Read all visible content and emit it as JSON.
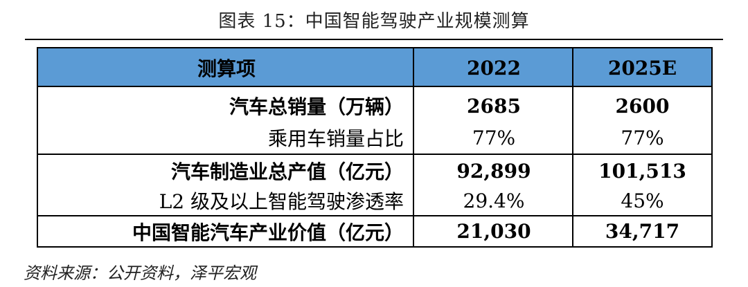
{
  "title": "图表 15：中国智能驾驶产业规模测算",
  "header": {
    "item": "测算项",
    "col_2022": "2022",
    "col_2025": "2025E"
  },
  "rows": [
    {
      "label": "汽车总销量（万辆）",
      "v2022": "2685",
      "v2025": "2600"
    },
    {
      "label": "乘用车销量占比",
      "v2022": "77%",
      "v2025": "77%"
    },
    {
      "label": "汽车制造业总产值（亿元）",
      "v2022": "92,899",
      "v2025": "101,513"
    },
    {
      "label": "L2 级及以上智能驾驶渗透率",
      "v2022": "29.4%",
      "v2025": "45%"
    },
    {
      "label": "中国智能汽车产业价值（亿元）",
      "v2022": "21,030",
      "v2025": "34,717"
    }
  ],
  "source": "资料来源：公开资料，泽平宏观",
  "colors": {
    "header_bg": "#5b9bd5",
    "border": "#000000"
  }
}
